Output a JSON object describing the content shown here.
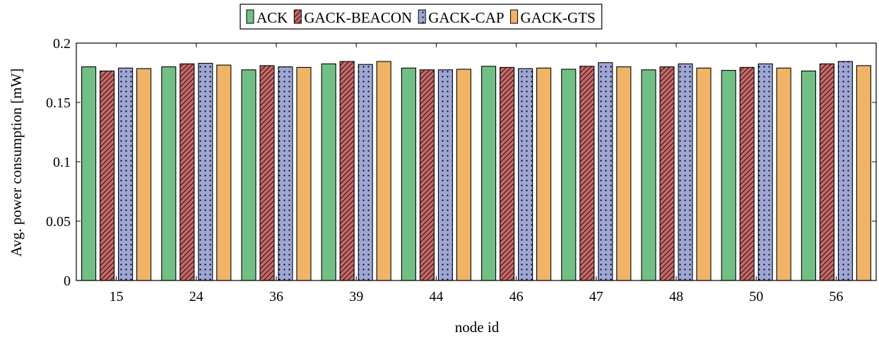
{
  "chart_data": {
    "type": "bar",
    "xlabel": "node id",
    "ylabel": "Avg. power consumption [mW]",
    "categories": [
      "15",
      "24",
      "36",
      "39",
      "44",
      "46",
      "47",
      "48",
      "50",
      "56"
    ],
    "ylim": [
      0,
      0.2
    ],
    "yticks": [
      0,
      0.05,
      0.1,
      0.15,
      0.2
    ],
    "ytick_labels": [
      "0",
      "0.05",
      "0.1",
      "0.15",
      "0.2"
    ],
    "grid": false,
    "legend_position": "top-center",
    "series": [
      {
        "name": "ACK",
        "color": "#72bf85",
        "pattern": "solid",
        "values": [
          0.18,
          0.18,
          0.1775,
          0.1825,
          0.179,
          0.1805,
          0.178,
          0.1775,
          0.177,
          0.1765
        ]
      },
      {
        "name": "GACK-BEACON",
        "color": "#cc6666",
        "pattern": "hatch",
        "values": [
          0.1765,
          0.1825,
          0.181,
          0.1845,
          0.1775,
          0.1795,
          0.1805,
          0.18,
          0.1795,
          0.1825
        ]
      },
      {
        "name": "GACK-CAP",
        "color": "#9ea6d6",
        "pattern": "dots",
        "values": [
          0.179,
          0.183,
          0.18,
          0.182,
          0.1775,
          0.1785,
          0.1835,
          0.1825,
          0.1825,
          0.1845
        ]
      },
      {
        "name": "GACK-GTS",
        "color": "#f0b466",
        "pattern": "solid",
        "values": [
          0.1785,
          0.1815,
          0.1795,
          0.1845,
          0.178,
          0.179,
          0.18,
          0.179,
          0.179,
          0.181
        ]
      }
    ]
  }
}
